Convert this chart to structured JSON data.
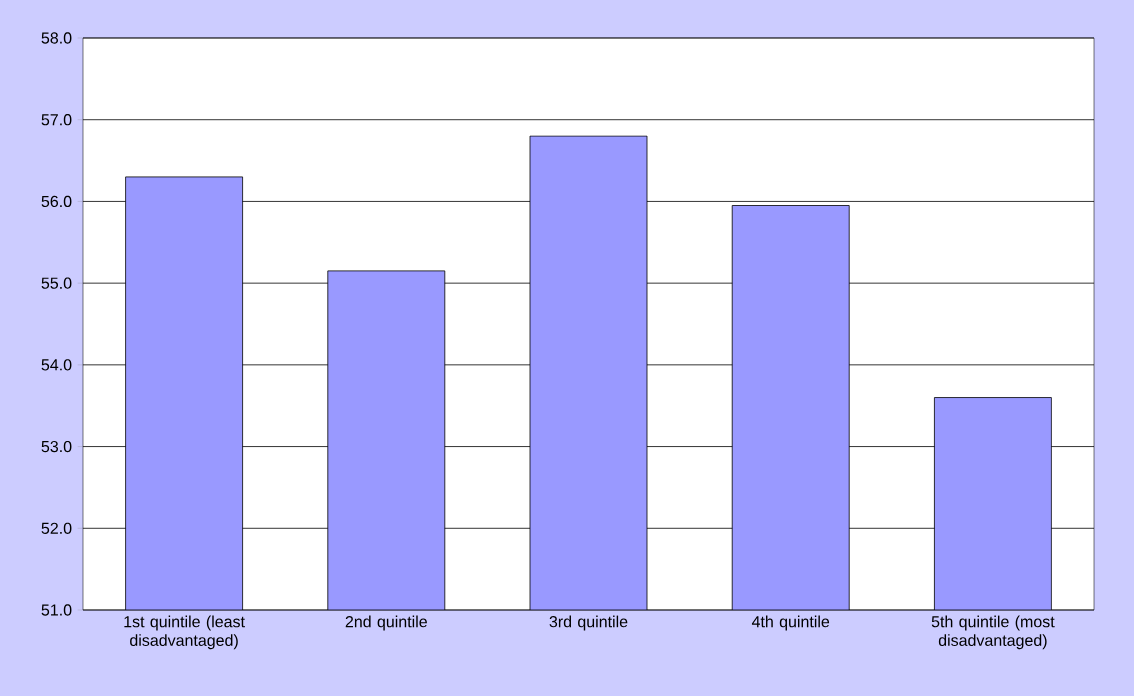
{
  "chart_data": {
    "type": "bar",
    "categories": [
      "1st quintile (least disadvantaged)",
      "2nd quintile",
      "3rd quintile",
      "4th quintile",
      "5th quintile (most disadvantaged)"
    ],
    "values": [
      56.3,
      55.15,
      56.8,
      55.95,
      53.6
    ],
    "color": "#9999ff",
    "ylim": [
      51,
      58
    ],
    "yticks": [
      {
        "value": 51,
        "label": "51.0"
      },
      {
        "value": 52,
        "label": "52.0"
      },
      {
        "value": 53,
        "label": "53.0"
      },
      {
        "value": 54,
        "label": "54.0"
      },
      {
        "value": 55,
        "label": "55.0"
      },
      {
        "value": 56,
        "label": "56.0"
      },
      {
        "value": 57,
        "label": "57.0"
      },
      {
        "value": 58,
        "label": "58.0"
      }
    ],
    "grid": "y"
  }
}
